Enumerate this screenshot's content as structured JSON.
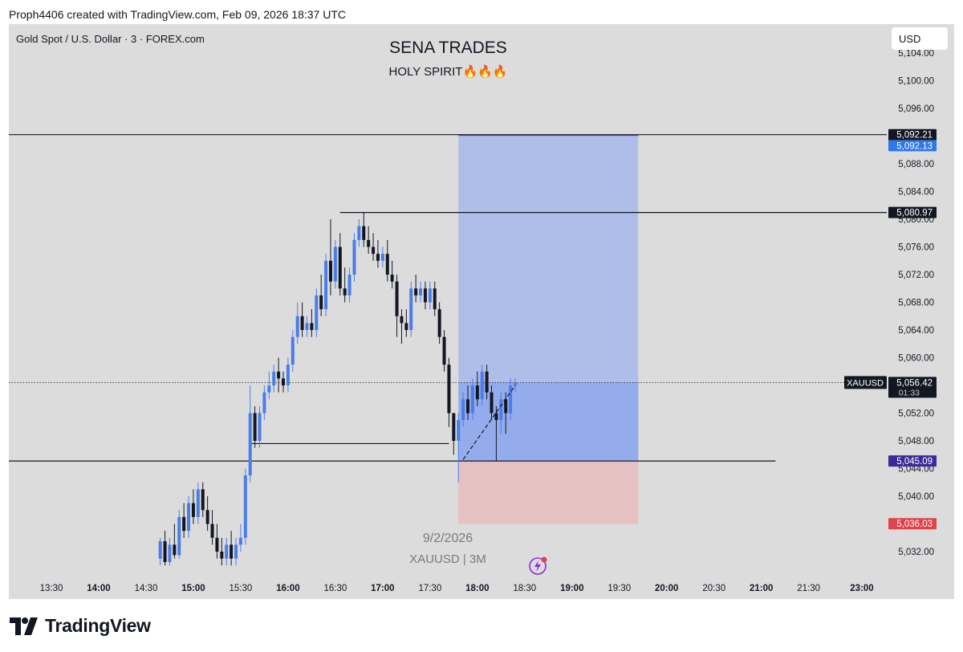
{
  "header": {
    "text": "Proph4406 created with TradingView.com, Feb 09, 2026 18:37 UTC"
  },
  "symbol_line": "Gold Spot / U.S. Dollar · 3 · FOREX.com",
  "currency": "USD",
  "footer": {
    "brand": "TradingView"
  },
  "colors": {
    "up": "#4a7de8",
    "down": "#131722",
    "profit_zone": "#a6b8ea",
    "loss_zone": "#e6bebe",
    "entry_label": "#3d2a9a",
    "stop_label": "#e3424c",
    "target_label": "#2f78ea"
  },
  "chart_data": {
    "type": "candlestick",
    "title": "SENA TRADES",
    "subtitle": "HOLY SPIRIT🔥🔥🔥",
    "symbol": "XAUUSD",
    "timeframe": "3",
    "watermark": {
      "date": "9/2/2026",
      "symbol_line": "XAUUSD | 3M"
    },
    "ylim": [
      5029.4,
      5107.0
    ],
    "y_ticks": [
      "5,032.00",
      "5,036.00",
      "5,040.00",
      "5,044.00",
      "5,048.00",
      "5,052.00",
      "5,056.00",
      "5,060.00",
      "5,064.00",
      "5,068.00",
      "5,072.00",
      "5,076.00",
      "5,080.00",
      "5,084.00",
      "5,088.00",
      "5,092.00",
      "5,096.00",
      "5,100.00",
      "5,104.00"
    ],
    "x_ticks": [
      {
        "t": "13:30",
        "label": "13:30",
        "bold": false
      },
      {
        "t": "14:00",
        "label": "14:00",
        "bold": true
      },
      {
        "t": "14:30",
        "label": "14:30",
        "bold": false
      },
      {
        "t": "15:00",
        "label": "15:00",
        "bold": true
      },
      {
        "t": "15:30",
        "label": "15:30",
        "bold": false
      },
      {
        "t": "16:00",
        "label": "16:00",
        "bold": true
      },
      {
        "t": "16:30",
        "label": "16:30",
        "bold": false
      },
      {
        "t": "17:00",
        "label": "17:00",
        "bold": true
      },
      {
        "t": "17:30",
        "label": "17:30",
        "bold": false
      },
      {
        "t": "18:00",
        "label": "18:00",
        "bold": true
      },
      {
        "t": "18:30",
        "label": "18:30",
        "bold": false
      },
      {
        "t": "19:00",
        "label": "19:00",
        "bold": true
      },
      {
        "t": "19:30",
        "label": "19:30",
        "bold": false
      },
      {
        "t": "20:00",
        "label": "20:00",
        "bold": true
      },
      {
        "t": "20:30",
        "label": "20:30",
        "bold": false
      },
      {
        "t": "21:00",
        "label": "21:00",
        "bold": true
      },
      {
        "t": "21:30",
        "label": "21:30",
        "bold": false
      },
      {
        "t": "23:00",
        "label": "23:00",
        "bold": true
      }
    ],
    "candles": [
      {
        "t": "14:39",
        "o": 5031,
        "h": 5034,
        "l": 5030,
        "c": 5033.5
      },
      {
        "t": "14:42",
        "o": 5033.5,
        "h": 5035,
        "l": 5030,
        "c": 5030.5
      },
      {
        "t": "14:45",
        "o": 5030.5,
        "h": 5034,
        "l": 5030,
        "c": 5033
      },
      {
        "t": "14:48",
        "o": 5033,
        "h": 5036,
        "l": 5031,
        "c": 5031.5
      },
      {
        "t": "14:51",
        "o": 5031.5,
        "h": 5038,
        "l": 5031,
        "c": 5037
      },
      {
        "t": "14:54",
        "o": 5037,
        "h": 5039,
        "l": 5034,
        "c": 5035
      },
      {
        "t": "14:57",
        "o": 5035,
        "h": 5040,
        "l": 5034,
        "c": 5039
      },
      {
        "t": "15:00",
        "o": 5039,
        "h": 5041,
        "l": 5036,
        "c": 5037
      },
      {
        "t": "15:03",
        "o": 5037,
        "h": 5042,
        "l": 5036,
        "c": 5041
      },
      {
        "t": "15:06",
        "o": 5041,
        "h": 5042,
        "l": 5037,
        "c": 5038
      },
      {
        "t": "15:09",
        "o": 5038,
        "h": 5040,
        "l": 5035,
        "c": 5036
      },
      {
        "t": "15:12",
        "o": 5036,
        "h": 5038,
        "l": 5033,
        "c": 5034
      },
      {
        "t": "15:15",
        "o": 5034,
        "h": 5036,
        "l": 5031,
        "c": 5032
      },
      {
        "t": "15:18",
        "o": 5032,
        "h": 5034,
        "l": 5030,
        "c": 5031
      },
      {
        "t": "15:21",
        "o": 5031,
        "h": 5034,
        "l": 5030,
        "c": 5033
      },
      {
        "t": "15:24",
        "o": 5033,
        "h": 5035,
        "l": 5030,
        "c": 5031
      },
      {
        "t": "15:27",
        "o": 5031,
        "h": 5034,
        "l": 5030,
        "c": 5033
      },
      {
        "t": "15:30",
        "o": 5033,
        "h": 5036,
        "l": 5032,
        "c": 5034
      },
      {
        "t": "15:33",
        "o": 5034,
        "h": 5044,
        "l": 5033,
        "c": 5043
      },
      {
        "t": "15:36",
        "o": 5043,
        "h": 5056,
        "l": 5042,
        "c": 5052
      },
      {
        "t": "15:39",
        "o": 5052,
        "h": 5053,
        "l": 5047,
        "c": 5048
      },
      {
        "t": "15:42",
        "o": 5048,
        "h": 5053,
        "l": 5047,
        "c": 5052
      },
      {
        "t": "15:45",
        "o": 5052,
        "h": 5056,
        "l": 5051,
        "c": 5055
      },
      {
        "t": "15:48",
        "o": 5055,
        "h": 5058,
        "l": 5054,
        "c": 5056
      },
      {
        "t": "15:51",
        "o": 5056,
        "h": 5059,
        "l": 5055,
        "c": 5058
      },
      {
        "t": "15:54",
        "o": 5058,
        "h": 5060,
        "l": 5055,
        "c": 5057
      },
      {
        "t": "15:57",
        "o": 5057,
        "h": 5058,
        "l": 5055,
        "c": 5056
      },
      {
        "t": "16:00",
        "o": 5056,
        "h": 5060,
        "l": 5055,
        "c": 5059
      },
      {
        "t": "16:03",
        "o": 5059,
        "h": 5064,
        "l": 5058,
        "c": 5063
      },
      {
        "t": "16:06",
        "o": 5063,
        "h": 5068,
        "l": 5062,
        "c": 5066
      },
      {
        "t": "16:09",
        "o": 5066,
        "h": 5068,
        "l": 5063,
        "c": 5064
      },
      {
        "t": "16:12",
        "o": 5064,
        "h": 5066,
        "l": 5063,
        "c": 5065
      },
      {
        "t": "16:15",
        "o": 5065,
        "h": 5067,
        "l": 5063,
        "c": 5064
      },
      {
        "t": "16:18",
        "o": 5064,
        "h": 5070,
        "l": 5063,
        "c": 5069
      },
      {
        "t": "16:21",
        "o": 5069,
        "h": 5072,
        "l": 5066,
        "c": 5067
      },
      {
        "t": "16:24",
        "o": 5067,
        "h": 5075,
        "l": 5066,
        "c": 5074
      },
      {
        "t": "16:27",
        "o": 5074,
        "h": 5080,
        "l": 5069,
        "c": 5071
      },
      {
        "t": "16:30",
        "o": 5071,
        "h": 5077,
        "l": 5070,
        "c": 5076
      },
      {
        "t": "16:33",
        "o": 5076,
        "h": 5078,
        "l": 5069,
        "c": 5070
      },
      {
        "t": "16:36",
        "o": 5070,
        "h": 5073,
        "l": 5068,
        "c": 5069
      },
      {
        "t": "16:39",
        "o": 5069,
        "h": 5073,
        "l": 5068,
        "c": 5072
      },
      {
        "t": "16:42",
        "o": 5072,
        "h": 5078,
        "l": 5071,
        "c": 5077
      },
      {
        "t": "16:45",
        "o": 5077,
        "h": 5080,
        "l": 5076,
        "c": 5079
      },
      {
        "t": "16:48",
        "o": 5079,
        "h": 5081,
        "l": 5076,
        "c": 5077
      },
      {
        "t": "16:51",
        "o": 5077,
        "h": 5079,
        "l": 5075,
        "c": 5076
      },
      {
        "t": "16:54",
        "o": 5076,
        "h": 5078,
        "l": 5074,
        "c": 5075
      },
      {
        "t": "16:57",
        "o": 5075,
        "h": 5077,
        "l": 5073,
        "c": 5074
      },
      {
        "t": "17:00",
        "o": 5074,
        "h": 5076,
        "l": 5073,
        "c": 5075
      },
      {
        "t": "17:03",
        "o": 5075,
        "h": 5077,
        "l": 5071,
        "c": 5072
      },
      {
        "t": "17:06",
        "o": 5072,
        "h": 5074,
        "l": 5070,
        "c": 5071
      },
      {
        "t": "17:09",
        "o": 5071,
        "h": 5072,
        "l": 5063,
        "c": 5066
      },
      {
        "t": "17:12",
        "o": 5066,
        "h": 5067,
        "l": 5062,
        "c": 5065
      },
      {
        "t": "17:15",
        "o": 5065,
        "h": 5067,
        "l": 5063,
        "c": 5064
      },
      {
        "t": "17:18",
        "o": 5064,
        "h": 5071,
        "l": 5063,
        "c": 5070
      },
      {
        "t": "17:21",
        "o": 5070,
        "h": 5072,
        "l": 5068,
        "c": 5069
      },
      {
        "t": "17:24",
        "o": 5069,
        "h": 5071,
        "l": 5068,
        "c": 5070
      },
      {
        "t": "17:27",
        "o": 5070,
        "h": 5071,
        "l": 5067,
        "c": 5068
      },
      {
        "t": "17:30",
        "o": 5068,
        "h": 5071,
        "l": 5067,
        "c": 5070
      },
      {
        "t": "17:33",
        "o": 5070,
        "h": 5071,
        "l": 5066,
        "c": 5067
      },
      {
        "t": "17:36",
        "o": 5067,
        "h": 5068,
        "l": 5062,
        "c": 5063
      },
      {
        "t": "17:39",
        "o": 5063,
        "h": 5064,
        "l": 5058,
        "c": 5059
      },
      {
        "t": "17:42",
        "o": 5059,
        "h": 5060,
        "l": 5050,
        "c": 5052
      },
      {
        "t": "17:45",
        "o": 5052,
        "h": 5052,
        "l": 5046,
        "c": 5048
      },
      {
        "t": "17:48",
        "o": 5048,
        "h": 5052,
        "l": 5042,
        "c": 5051
      },
      {
        "t": "17:51",
        "o": 5051,
        "h": 5055,
        "l": 5050,
        "c": 5054
      },
      {
        "t": "17:54",
        "o": 5054,
        "h": 5056,
        "l": 5051,
        "c": 5052
      },
      {
        "t": "17:57",
        "o": 5052,
        "h": 5057,
        "l": 5051,
        "c": 5056
      },
      {
        "t": "18:00",
        "o": 5056,
        "h": 5058,
        "l": 5053,
        "c": 5054
      },
      {
        "t": "18:03",
        "o": 5054,
        "h": 5059,
        "l": 5053,
        "c": 5058
      },
      {
        "t": "18:06",
        "o": 5058,
        "h": 5059,
        "l": 5054,
        "c": 5055
      },
      {
        "t": "18:09",
        "o": 5055,
        "h": 5056,
        "l": 5051,
        "c": 5052
      },
      {
        "t": "18:12",
        "o": 5052,
        "h": 5053,
        "l": 5045,
        "c": 5051
      },
      {
        "t": "18:15",
        "o": 5051,
        "h": 5055,
        "l": 5049,
        "c": 5054
      },
      {
        "t": "18:18",
        "o": 5054,
        "h": 5055,
        "l": 5049,
        "c": 5052
      },
      {
        "t": "18:21",
        "o": 5052,
        "h": 5057,
        "l": 5051,
        "c": 5056
      },
      {
        "t": "18:24",
        "o": 5056,
        "h": 5057,
        "l": 5055,
        "c": 5056.4
      }
    ],
    "levels": [
      {
        "name": "top-line",
        "price": 5092.21,
        "label": "5,092.21",
        "t_start": "12:00",
        "t_end": "23:50"
      },
      {
        "name": "high-line",
        "price": 5080.97,
        "label": "5,080.97",
        "t_start": "16:33",
        "t_end": "23:50"
      },
      {
        "name": "support-line",
        "price": 5047.6,
        "label": "",
        "t_start": "15:36",
        "t_end": "17:42"
      },
      {
        "name": "entry-line",
        "price": 5045.09,
        "label": "5,045.09",
        "t_start": "12:00",
        "t_end": "21:09"
      }
    ],
    "position": {
      "type": "long",
      "t_start": "17:48",
      "t_end": "19:42",
      "entry": 5045.09,
      "target": 5092.13,
      "stop": 5036.03,
      "target_label": "5,092.13",
      "stop_label": "5,036.03",
      "entry_label": "5,045.09"
    },
    "current_price": {
      "symbol": "XAUUSD",
      "price": 5056.42,
      "label": "5,056.42",
      "countdown": "01:33"
    },
    "trend_line": {
      "t1": "17:51",
      "p1": 5045.3,
      "t2": "18:24",
      "p2": 5056.0
    }
  }
}
